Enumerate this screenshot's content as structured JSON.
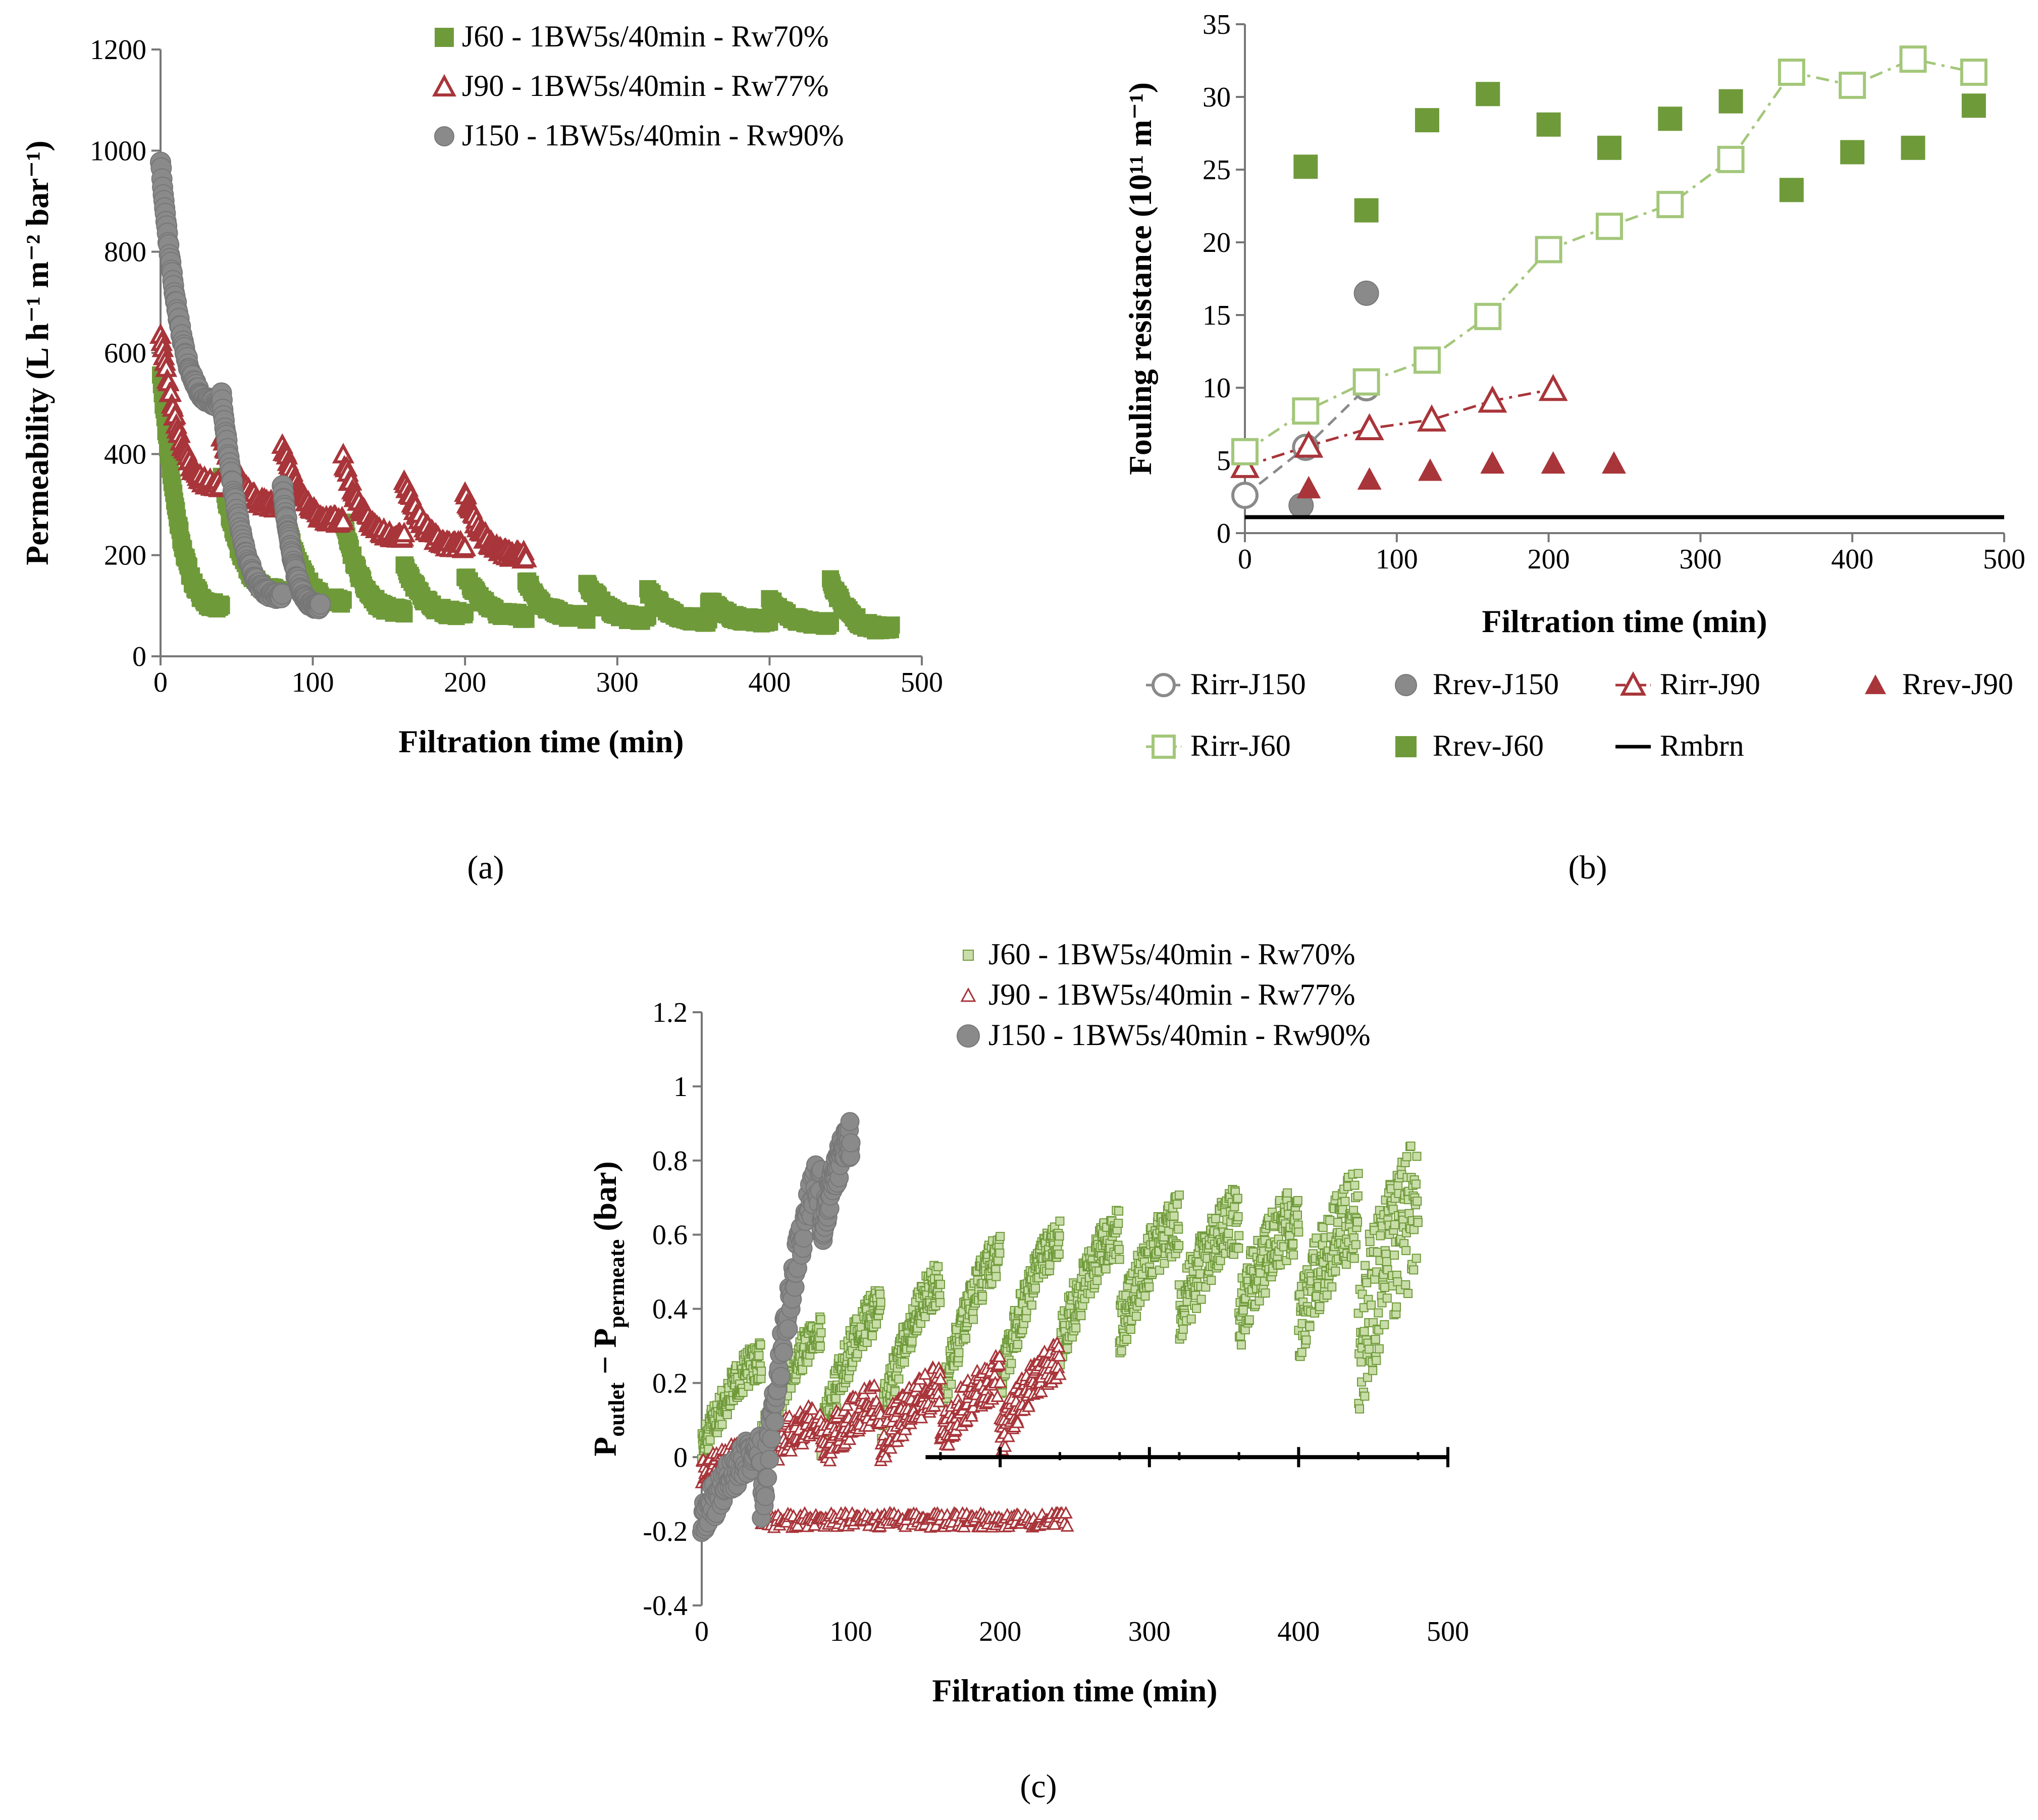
{
  "colors": {
    "green": "#6f9a3a",
    "light_green": "#a3c77a",
    "red": "#a8353a",
    "gray": "#8a8a8a",
    "black": "#000000"
  },
  "chart_data": [
    {
      "id": "a",
      "type": "scatter",
      "panel_label": "(a)",
      "xlabel": "Filtration time (min)",
      "ylabel": "Permeability (L h⁻¹ m⁻² bar⁻¹)",
      "xlim": [
        0,
        500
      ],
      "ylim": [
        0,
        1200
      ],
      "xticks": [
        0,
        100,
        200,
        300,
        400,
        500
      ],
      "yticks": [
        0,
        200,
        400,
        600,
        800,
        1000,
        1200
      ],
      "legend_position": "top-right",
      "series": [
        {
          "name": "J60 - 1BW5s/40min - Rw70%",
          "marker": "square-filled",
          "color": "#6f9a3a",
          "cycles": [
            {
              "start": 0,
              "end": 40,
              "y0": 560,
              "y1": 100
            },
            {
              "start": 40,
              "end": 80,
              "y0": 360,
              "y1": 130
            },
            {
              "start": 80,
              "end": 120,
              "y0": 300,
              "y1": 110
            },
            {
              "start": 120,
              "end": 160,
              "y0": 265,
              "y1": 90
            },
            {
              "start": 160,
              "end": 200,
              "y0": 180,
              "y1": 85
            },
            {
              "start": 200,
              "end": 240,
              "y0": 160,
              "y1": 80
            },
            {
              "start": 240,
              "end": 280,
              "y0": 150,
              "y1": 78
            },
            {
              "start": 280,
              "end": 320,
              "y0": 145,
              "y1": 75
            },
            {
              "start": 320,
              "end": 360,
              "y0": 130,
              "y1": 72
            },
            {
              "start": 360,
              "end": 400,
              "y0": 110,
              "y1": 70
            },
            {
              "start": 400,
              "end": 440,
              "y0": 110,
              "y1": 65
            },
            {
              "start": 440,
              "end": 480,
              "y0": 150,
              "y1": 55
            }
          ]
        },
        {
          "name": "J90 -  1BW5s/40min - Rw77%",
          "marker": "triangle-open",
          "color": "#a8353a",
          "cycles": [
            {
              "start": 0,
              "end": 40,
              "y0": 640,
              "y1": 340
            },
            {
              "start": 40,
              "end": 80,
              "y0": 440,
              "y1": 300
            },
            {
              "start": 80,
              "end": 120,
              "y0": 420,
              "y1": 270
            },
            {
              "start": 120,
              "end": 160,
              "y0": 390,
              "y1": 240
            },
            {
              "start": 160,
              "end": 200,
              "y0": 350,
              "y1": 220
            },
            {
              "start": 200,
              "end": 240,
              "y0": 320,
              "y1": 200
            }
          ]
        },
        {
          "name": "J150 - 1BW5s/40min - Rw90%",
          "marker": "circle-filled",
          "color": "#8a8a8a",
          "cycles": [
            {
              "start": 0,
              "end": 40,
              "y0": 980,
              "y1": 500
            },
            {
              "start": 40,
              "end": 80,
              "y0": 520,
              "y1": 120
            },
            {
              "start": 80,
              "end": 105,
              "y0": 340,
              "y1": 100
            }
          ]
        }
      ]
    },
    {
      "id": "b",
      "type": "scatter",
      "panel_label": "(b)",
      "xlabel": "Filtration time (min)",
      "ylabel": "Fouling resistance (10¹¹ m⁻¹)",
      "xlim": [
        0,
        500
      ],
      "ylim": [
        0,
        35
      ],
      "xticks": [
        0,
        100,
        200,
        300,
        400,
        500
      ],
      "yticks": [
        0,
        5,
        10,
        15,
        20,
        25,
        30,
        35
      ],
      "legend_position": "bottom",
      "series": [
        {
          "name": "Rirr-J150",
          "marker": "circle-open",
          "line": "dashed",
          "color": "#8a8a8a",
          "x": [
            0,
            40,
            80
          ],
          "y": [
            2.6,
            5.9,
            10.0
          ]
        },
        {
          "name": "Rrev-J150",
          "marker": "circle-filled",
          "line": "none",
          "color": "#8a8a8a",
          "x": [
            37,
            80
          ],
          "y": [
            1.9,
            16.5
          ]
        },
        {
          "name": "Rirr-J90",
          "marker": "triangle-open",
          "line": "dash-dot",
          "color": "#a8353a",
          "x": [
            0,
            42,
            82,
            123,
            163,
            203
          ],
          "y": [
            4.6,
            6.0,
            7.2,
            7.8,
            9.1,
            9.9
          ]
        },
        {
          "name": "Rrev-J90",
          "marker": "triangle-filled",
          "line": "none",
          "color": "#a8353a",
          "x": [
            42,
            82,
            122,
            163,
            203,
            243
          ],
          "y": [
            3.1,
            3.7,
            4.3,
            4.8,
            4.8,
            4.8
          ]
        },
        {
          "name": "Rirr-J60",
          "marker": "square-open",
          "line": "dash-dot",
          "color": "#a3c77a",
          "x": [
            0,
            40,
            80,
            120,
            160,
            200,
            240,
            280,
            320,
            360,
            400,
            440,
            480
          ],
          "y": [
            5.6,
            8.4,
            10.4,
            11.9,
            14.9,
            19.5,
            21.1,
            22.6,
            25.7,
            31.7,
            30.8,
            32.6,
            31.7
          ]
        },
        {
          "name": "Rrev-J60",
          "marker": "square-filled",
          "line": "none",
          "color": "#6f9a3a",
          "x": [
            40,
            80,
            120,
            160,
            200,
            240,
            280,
            320,
            360,
            400,
            440,
            480
          ],
          "y": [
            25.2,
            22.2,
            28.4,
            30.2,
            28.1,
            26.5,
            28.5,
            29.7,
            23.6,
            26.2,
            26.5,
            29.4
          ]
        },
        {
          "name": "Rmbrn",
          "marker": "none",
          "line": "solid",
          "color": "#000000",
          "x": [
            0,
            500
          ],
          "y": [
            1.1,
            1.1
          ]
        }
      ]
    },
    {
      "id": "c",
      "type": "scatter",
      "panel_label": "(c)",
      "xlabel": "Filtration time (min)",
      "ylabel_main": "P",
      "ylabel_sub1": "outlet",
      "ylabel_mid": " − P",
      "ylabel_sub2": "permeate",
      "ylabel_end": " (bar)",
      "xlim": [
        0,
        500
      ],
      "ylim": [
        -0.4,
        1.2
      ],
      "xticks": [
        0,
        100,
        200,
        300,
        400,
        500
      ],
      "yticks": [
        -0.4,
        -0.2,
        0,
        0.2,
        0.4,
        0.6,
        0.8,
        1.0,
        1.2
      ],
      "ytick_labels": [
        "-0.4",
        "-0.2",
        "0",
        "0.2",
        "0.4",
        "0.6",
        "0.8",
        "1",
        "1.2"
      ],
      "legend_position": "top-right",
      "series": [
        {
          "name": "J60 - 1BW5s/40min - Rw70%",
          "marker": "square-small",
          "color": "#6f9a3a",
          "cycles": [
            {
              "start": 0,
              "end": 40,
              "y0": 0.02,
              "y1": 0.26,
              "spread": 0.05
            },
            {
              "start": 40,
              "end": 80,
              "y0": 0.04,
              "y1": 0.33,
              "spread": 0.05
            },
            {
              "start": 80,
              "end": 120,
              "y0": 0.06,
              "y1": 0.4,
              "spread": 0.06
            },
            {
              "start": 120,
              "end": 160,
              "y0": 0.1,
              "y1": 0.47,
              "spread": 0.06
            },
            {
              "start": 160,
              "end": 200,
              "y0": 0.14,
              "y1": 0.54,
              "spread": 0.06
            },
            {
              "start": 200,
              "end": 240,
              "y0": 0.2,
              "y1": 0.58,
              "spread": 0.06
            },
            {
              "start": 240,
              "end": 280,
              "y0": 0.3,
              "y1": 0.6,
              "spread": 0.07
            },
            {
              "start": 280,
              "end": 320,
              "y0": 0.34,
              "y1": 0.63,
              "spread": 0.08
            },
            {
              "start": 320,
              "end": 360,
              "y0": 0.38,
              "y1": 0.64,
              "spread": 0.09
            },
            {
              "start": 360,
              "end": 400,
              "y0": 0.38,
              "y1": 0.64,
              "spread": 0.1
            },
            {
              "start": 400,
              "end": 440,
              "y0": 0.35,
              "y1": 0.66,
              "spread": 0.12
            },
            {
              "start": 440,
              "end": 480,
              "y0": 0.3,
              "y1": 0.66,
              "spread": 0.2
            }
          ]
        },
        {
          "name": "J90 -  1BW5s/40min - Rw77%",
          "marker": "triangle-open-small",
          "color": "#a8353a",
          "cycles": [
            {
              "start": 0,
              "end": 40,
              "y0": -0.05,
              "y1": 0.02,
              "spread": 0.04
            },
            {
              "start": 40,
              "end": 80,
              "y0": 0.0,
              "y1": 0.1,
              "spread": 0.05
            },
            {
              "start": 80,
              "end": 120,
              "y0": 0.02,
              "y1": 0.15,
              "spread": 0.06
            },
            {
              "start": 120,
              "end": 160,
              "y0": 0.04,
              "y1": 0.19,
              "spread": 0.06
            },
            {
              "start": 160,
              "end": 200,
              "y0": 0.05,
              "y1": 0.22,
              "spread": 0.06
            },
            {
              "start": 200,
              "end": 240,
              "y0": 0.06,
              "y1": 0.26,
              "spread": 0.06
            }
          ],
          "lower_band": {
            "start": 40,
            "end": 245,
            "y": -0.17
          }
        },
        {
          "name": "J150 - 1BW5s/40min - Rw90%",
          "marker": "circle-filled",
          "color": "#8a8a8a",
          "cycles": [
            {
              "start": 0,
              "end": 40,
              "y0": -0.18,
              "y1": 0.02,
              "spread": 0.05
            },
            {
              "start": 40,
              "end": 80,
              "y0": -0.15,
              "y1": 0.75,
              "spread": 0.06
            },
            {
              "start": 80,
              "end": 100,
              "y0": 0.6,
              "y1": 0.86,
              "spread": 0.05
            }
          ]
        },
        {
          "name": "zero-line",
          "marker": "none",
          "line": "solid",
          "color": "#000000",
          "x": [
            150,
            500
          ],
          "y": [
            0,
            0
          ]
        }
      ]
    }
  ]
}
